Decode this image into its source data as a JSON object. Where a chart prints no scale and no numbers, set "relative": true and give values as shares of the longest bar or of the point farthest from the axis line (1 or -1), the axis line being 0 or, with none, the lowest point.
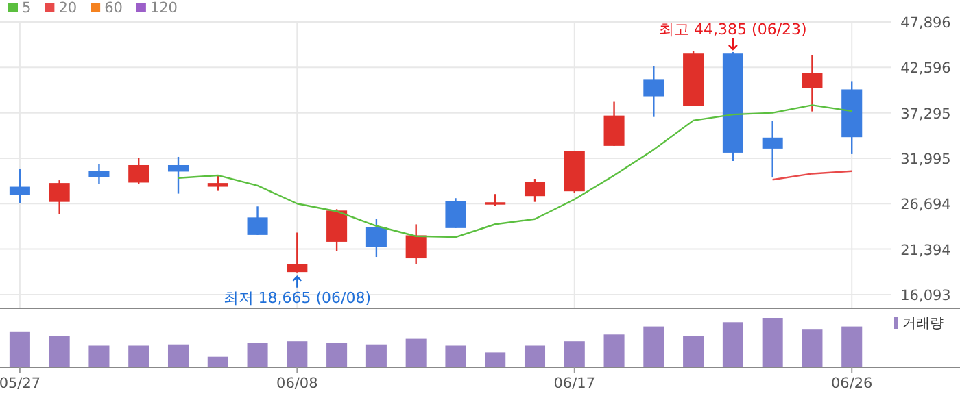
{
  "chart_data": [
    {
      "type": "candlestick",
      "categories": [
        "05/27",
        null,
        null,
        null,
        null,
        null,
        null,
        "06/08",
        null,
        null,
        null,
        null,
        null,
        null,
        "06/17",
        null,
        null,
        null,
        null,
        null,
        null,
        "06/26"
      ],
      "ohlc": [
        [
          28672,
          30712,
          26745,
          27709
        ],
        [
          26905,
          29427,
          25461,
          29106
        ],
        [
          30551,
          31354,
          28994,
          29797
        ],
        [
          29159,
          31996,
          28994,
          31194
        ],
        [
          31194,
          32157,
          27870,
          30439
        ],
        [
          28672,
          29957,
          28190,
          29106
        ],
        [
          25091,
          26376,
          23052,
          23052
        ],
        [
          18715,
          23324,
          18665,
          19630
        ],
        [
          22250,
          26055,
          21124,
          25894
        ],
        [
          23967,
          24931,
          20482,
          21606
        ],
        [
          20321,
          24288,
          19679,
          23003
        ],
        [
          27018,
          27339,
          23854,
          23854
        ],
        [
          26585,
          27821,
          26424,
          26858
        ],
        [
          27580,
          29588,
          26905,
          29267
        ],
        [
          28142,
          32800,
          27982,
          32800
        ],
        [
          33442,
          38581,
          33442,
          36975
        ],
        [
          41151,
          42757,
          36814,
          39224
        ],
        [
          38100,
          44523,
          38100,
          44202
        ],
        [
          44202,
          44385,
          31675,
          32639
        ],
        [
          34406,
          36333,
          29749,
          33121
        ],
        [
          40187,
          44041,
          37457,
          41954
        ],
        [
          40027,
          40991,
          32478,
          34454
        ]
      ],
      "colors": [
        "#3a7de0",
        "#e0302a",
        "#3a7de0",
        "#e0302a",
        "#3a7de0",
        "#e0302a",
        "#3a7de0",
        "#e0302a",
        "#e0302a",
        "#3a7de0",
        "#e0302a",
        "#3a7de0",
        "#e0302a",
        "#e0302a",
        "#e0302a",
        "#e0302a",
        "#3a7de0",
        "#e0302a",
        "#3a7de0",
        "#3a7de0",
        "#e0302a",
        "#3a7de0"
      ],
      "series": [
        {
          "name": "5",
          "type": "line",
          "color": "#5bbf3f",
          "values": [
            null,
            null,
            null,
            null,
            29700,
            30000,
            28800,
            26700,
            25800,
            24100,
            22900,
            22800,
            24300,
            24900,
            27200,
            30000,
            33000,
            36400,
            37100,
            37300,
            38200,
            37500
          ]
        },
        {
          "name": "20",
          "type": "line",
          "color": "#e84a4a",
          "values": [
            null,
            null,
            null,
            null,
            null,
            null,
            null,
            null,
            null,
            null,
            null,
            null,
            null,
            null,
            null,
            null,
            null,
            null,
            null,
            29500,
            30200,
            30500
          ]
        },
        {
          "name": "60",
          "type": "line",
          "color": "#f5821f",
          "values": [
            null,
            null,
            null,
            null,
            null,
            null,
            null,
            null,
            null,
            null,
            null,
            null,
            null,
            null,
            null,
            null,
            null,
            null,
            null,
            null,
            null,
            null
          ]
        },
        {
          "name": "120",
          "type": "line",
          "color": "#9c5fc9",
          "values": [
            null,
            null,
            null,
            null,
            null,
            null,
            null,
            null,
            null,
            null,
            null,
            null,
            null,
            null,
            null,
            null,
            null,
            null,
            null,
            null,
            null,
            null
          ]
        }
      ],
      "ylim": [
        14491,
        47896
      ],
      "yticks": [
        {
          "value": 16093,
          "label": "16,093"
        },
        {
          "value": 21394,
          "label": "21,394"
        },
        {
          "value": 26694,
          "label": "26,694"
        },
        {
          "value": 31995,
          "label": "31,995"
        },
        {
          "value": 37295,
          "label": "37,295"
        },
        {
          "value": 42596,
          "label": "42,596"
        },
        {
          "value": 47896,
          "label": "47,896"
        }
      ],
      "grid": true,
      "legend": "top left",
      "tick_labels": "y",
      "annotations": [
        {
          "text": "최고 44,385 (06/23)",
          "y": 44385
        },
        {
          "text": "최저 18,665 (06/08)",
          "x": "06/08",
          "y": 18665
        }
      ]
    },
    {
      "type": "bar",
      "categories": [
        "05/27",
        null,
        null,
        null,
        null,
        null,
        null,
        "06/08",
        null,
        null,
        null,
        null,
        null,
        null,
        "06/17",
        null,
        null,
        null,
        null,
        null,
        null,
        "06/26"
      ],
      "relative": true,
      "series": [
        {
          "name": "거래량",
          "color": "#9a84c4",
          "values": [
            0.725,
            0.6375,
            0.4375,
            0.4375,
            0.4625,
            0.2125,
            0.5,
            0.525,
            0.5,
            0.4625,
            0.575,
            0.4375,
            0.3,
            0.4375,
            0.525,
            0.6625,
            0.825,
            0.6375,
            0.9125,
            1,
            0.775,
            0.825
          ]
        }
      ],
      "legend": "top right",
      "tick_labels": "x"
    }
  ]
}
